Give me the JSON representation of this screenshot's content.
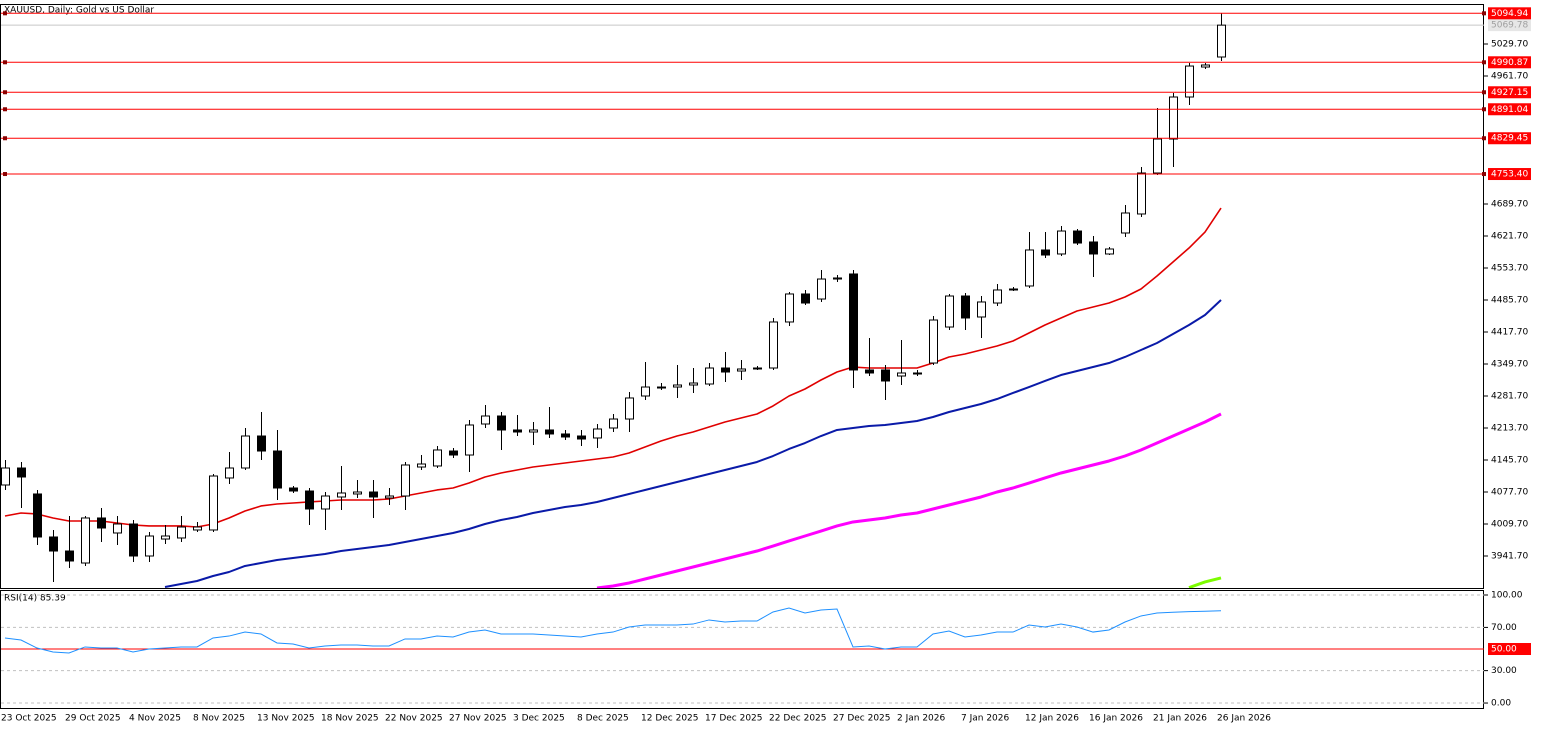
{
  "chart_data": [
    {
      "type": "candlestick",
      "title": "XAUUSD, Daily:  Gold vs US Dollar",
      "categories": [
        "23 Oct 2025",
        null,
        null,
        null,
        "29 Oct 2025",
        null,
        null,
        null,
        "4 Nov 2025",
        null,
        null,
        null,
        "8 Nov 2025",
        null,
        null,
        null,
        "13 Nov 2025",
        null,
        null,
        null,
        "18 Nov 2025",
        null,
        null,
        null,
        "22 Nov 2025",
        null,
        null,
        null,
        "27 Nov 2025",
        null,
        null,
        null,
        "3 Dec 2025",
        null,
        null,
        null,
        "8 Dec 2025",
        null,
        null,
        null,
        "12 Dec 2025",
        null,
        null,
        null,
        "17 Dec 2025",
        null,
        null,
        null,
        "22 Dec 2025",
        null,
        null,
        null,
        "27 Dec 2025",
        null,
        null,
        null,
        "2 Jan 2026",
        null,
        null,
        null,
        "7 Jan 2026",
        null,
        null,
        null,
        "12 Jan 2026",
        null,
        null,
        null,
        "16 Jan 2026",
        null,
        null,
        null,
        "21 Jan 2026",
        null,
        null,
        null,
        "26 Jan 2026"
      ],
      "open": [
        4092.6,
        4128.7,
        4073.5,
        3982.1,
        3952.3,
        3926.8,
        4022.5,
        3990.6,
        4009.7,
        3941.7,
        3977.8,
        3980.0,
        3997.0,
        3997.0,
        4107.5,
        4128.7,
        4196.7,
        4164.8,
        4086.2,
        4079.8,
        4041.6,
        4067.1,
        4073.5,
        4077.7,
        4065.0,
        4069.2,
        4130.8,
        4133.0,
        4164.8,
        4156.3,
        4222.2,
        4239.2,
        4209.5,
        4205.2,
        4209.5,
        4201.0,
        4196.7,
        4192.5,
        4213.7,
        4232.8,
        4281.7,
        4298.7,
        4300.8,
        4305.1,
        4307.2,
        4341.2,
        4334.8,
        4339.1,
        4341.2,
        4439.0,
        4498.5,
        4487.8,
        4530.3,
        4541.0,
        4337.0,
        4337.0,
        4324.2,
        4328.5,
        4351.8,
        4428.3,
        4494.2,
        4449.6,
        4479.3,
        4507.0,
        4515.5,
        4592.0,
        4583.5,
        4632.3,
        4609.0,
        4583.5,
        4628.1,
        4668.5,
        4755.6,
        4827.8,
        4917.1,
        4980.8,
        5002.1
      ],
      "high": [
        4145.7,
        4141.5,
        4082.0,
        3997.0,
        4026.7,
        4026.7,
        4043.7,
        4026.7,
        4018.2,
        3992.7,
        4007.6,
        4026.7,
        4014.0,
        4116.0,
        4162.7,
        4213.7,
        4247.7,
        4209.5,
        4090.5,
        4086.2,
        4077.7,
        4133.0,
        4103.2,
        4103.2,
        4086.2,
        4141.5,
        4156.3,
        4175.5,
        4171.2,
        4230.7,
        4262.6,
        4247.7,
        4241.3,
        4226.5,
        4258.3,
        4209.5,
        4209.5,
        4222.2,
        4243.5,
        4290.2,
        4354.0,
        4309.3,
        4347.6,
        4341.2,
        4351.8,
        4375.2,
        4358.2,
        4345.5,
        4447.5,
        4502.7,
        4507.0,
        4549.5,
        4538.8,
        4549.5,
        4405.0,
        4347.6,
        4400.7,
        4337.0,
        4451.7,
        4498.5,
        4500.6,
        4494.2,
        4519.7,
        4513.3,
        4630.2,
        4630.2,
        4643.0,
        4636.6,
        4621.7,
        4598.3,
        4687.6,
        4768.3,
        4893.7,
        4925.6,
        4989.3,
        4989.3,
        5094.9
      ],
      "low": [
        4081.9,
        4043.7,
        3965.1,
        3886.5,
        3916.2,
        3920.5,
        3971.5,
        3965.1,
        3928.9,
        3928.9,
        3967.2,
        3971.5,
        3992.7,
        3992.7,
        4094.7,
        4124.5,
        4145.7,
        4060.7,
        4075.6,
        4007.6,
        3997.0,
        4039.5,
        4065.0,
        4022.5,
        4050.1,
        4039.5,
        4124.5,
        4128.7,
        4150.0,
        4120.2,
        4213.7,
        4167.0,
        4196.7,
        4177.6,
        4192.5,
        4188.2,
        4175.5,
        4171.2,
        4205.2,
        4205.2,
        4273.2,
        4294.5,
        4277.5,
        4288.1,
        4303.0,
        4311.5,
        4315.7,
        4337.0,
        4337.0,
        4430.5,
        4475.1,
        4481.5,
        4524.0,
        4298.7,
        4324.2,
        4273.2,
        4305.1,
        4324.2,
        4347.6,
        4421.9,
        4421.9,
        4405.0,
        4473.0,
        4504.8,
        4511.2,
        4575.0,
        4579.2,
        4602.6,
        4534.6,
        4581.3,
        4619.6,
        4662.1,
        4751.3,
        4768.3,
        4900.1,
        4976.6,
        4993.6
      ],
      "close": [
        4128.7,
        4109.6,
        3982.1,
        3952.3,
        3931.1,
        4022.5,
        4001.2,
        4009.7,
        3941.7,
        3984.2,
        3984.2,
        4003.3,
        4003.3,
        4111.7,
        4128.7,
        4196.7,
        4164.8,
        4086.2,
        4079.8,
        4041.6,
        4069.2,
        4075.6,
        4077.7,
        4067.1,
        4069.2,
        4135.1,
        4137.2,
        4167.0,
        4156.3,
        4220.1,
        4239.2,
        4209.5,
        4205.2,
        4209.5,
        4201.0,
        4194.6,
        4190.3,
        4211.6,
        4232.8,
        4277.5,
        4300.8,
        4300.8,
        4305.1,
        4309.3,
        4341.2,
        4332.7,
        4339.1,
        4341.2,
        4439.0,
        4498.5,
        4479.3,
        4530.3,
        4532.5,
        4337.0,
        4330.6,
        4313.6,
        4330.6,
        4330.6,
        4443.2,
        4494.2,
        4447.5,
        4481.5,
        4507.0,
        4509.1,
        4592.0,
        4581.3,
        4632.3,
        4606.8,
        4583.5,
        4594.1,
        4670.6,
        4755.6,
        4827.8,
        4917.1,
        4982.9,
        4985.1,
        5069.8
      ],
      "up_color": "#ffffff",
      "down_color": "#000000",
      "outline_color": "#000000",
      "ylim": [
        3873.7,
        5112.6
      ],
      "yticks": [
        {
          "value": 5029.7,
          "label": "5029.70"
        },
        {
          "value": 4961.7,
          "label": "4961.70"
        },
        {
          "value": 4689.7,
          "label": "4689.70"
        },
        {
          "value": 4621.7,
          "label": "4621.70"
        },
        {
          "value": 4553.7,
          "label": "4553.70"
        },
        {
          "value": 4485.7,
          "label": "4485.70"
        },
        {
          "value": 4417.7,
          "label": "4417.70"
        },
        {
          "value": 4349.7,
          "label": "4349.70"
        },
        {
          "value": 4281.7,
          "label": "4281.70"
        },
        {
          "value": 4213.7,
          "label": "4213.70"
        },
        {
          "value": 4145.7,
          "label": "4145.70"
        },
        {
          "value": 4077.7,
          "label": "4077.70"
        },
        {
          "value": 4009.7,
          "label": "4009.70"
        },
        {
          "value": 3941.7,
          "label": "3941.70"
        }
      ],
      "levels": [
        {
          "value": 5094.94,
          "label": "5094.94"
        },
        {
          "value": 4990.87,
          "label": "4990.87"
        },
        {
          "value": 4927.15,
          "label": "4927.15"
        },
        {
          "value": 4891.04,
          "label": "4891.04"
        },
        {
          "value": 4829.45,
          "label": "4829.45"
        },
        {
          "value": 4753.4,
          "label": "4753.40"
        }
      ],
      "level_color": "#ff0000",
      "last_price": {
        "value": 5069.78,
        "label": "5069.78"
      },
      "overlays": [
        {
          "color": "#e00000",
          "width": 1.6,
          "values": [
            4026.7,
            4033.1,
            4031.0,
            4022.5,
            4016.1,
            4016.1,
            4016.1,
            4011.8,
            4007.6,
            4005.5,
            4005.5,
            4005.5,
            4003.3,
            4009.7,
            4022.5,
            4037.3,
            4048.0,
            4052.2,
            4054.3,
            4056.5,
            4058.6,
            4060.7,
            4060.7,
            4060.7,
            4062.8,
            4069.2,
            4075.6,
            4082.0,
            4086.2,
            4096.8,
            4109.6,
            4118.1,
            4124.5,
            4130.8,
            4135.1,
            4139.3,
            4143.6,
            4147.8,
            4152.1,
            4160.6,
            4173.3,
            4186.1,
            4196.7,
            4205.2,
            4215.8,
            4226.5,
            4235.0,
            4243.5,
            4260.5,
            4281.7,
            4296.6,
            4315.7,
            4332.7,
            4343.3,
            4341.2,
            4341.2,
            4341.2,
            4341.2,
            4351.8,
            4364.6,
            4371.0,
            4379.5,
            4388.0,
            4398.6,
            4415.6,
            4432.6,
            4447.5,
            4462.3,
            4470.8,
            4479.3,
            4492.1,
            4509.1,
            4536.7,
            4566.5,
            4596.2,
            4630.2,
            4681.2
          ]
        },
        {
          "color": "#0a1aa8",
          "width": 2,
          "values": [
            null,
            null,
            null,
            null,
            null,
            null,
            null,
            null,
            null,
            null,
            3875.8,
            3882.2,
            3888.6,
            3899.2,
            3907.7,
            3920.5,
            3926.8,
            3933.2,
            3937.5,
            3941.7,
            3946.0,
            3952.3,
            3956.6,
            3960.8,
            3965.1,
            3971.5,
            3977.8,
            3984.2,
            3990.6,
            3999.1,
            4009.7,
            4018.2,
            4024.6,
            4033.1,
            4039.5,
            4045.8,
            4050.1,
            4056.5,
            4065.0,
            4073.5,
            4082.0,
            4090.5,
            4099.0,
            4107.5,
            4116.0,
            4124.5,
            4133.0,
            4141.5,
            4154.2,
            4169.1,
            4181.8,
            4196.7,
            4209.5,
            4213.7,
            4218.0,
            4220.1,
            4224.3,
            4228.6,
            4237.1,
            4247.7,
            4256.2,
            4264.7,
            4275.3,
            4288.1,
            4300.8,
            4313.6,
            4326.3,
            4334.8,
            4343.3,
            4351.8,
            4364.6,
            4379.5,
            4394.3,
            4413.5,
            4432.6,
            4453.8,
            4485.7
          ]
        },
        {
          "color": "#ff00ff",
          "width": 3,
          "values": [
            null,
            null,
            null,
            null,
            null,
            null,
            null,
            null,
            null,
            null,
            null,
            null,
            null,
            null,
            null,
            null,
            null,
            null,
            null,
            null,
            null,
            null,
            null,
            null,
            null,
            null,
            null,
            null,
            null,
            null,
            null,
            null,
            null,
            null,
            null,
            null,
            null,
            3873.7,
            3877.9,
            3884.3,
            3892.8,
            3901.3,
            3909.8,
            3918.3,
            3926.8,
            3935.3,
            3943.8,
            3952.3,
            3962.9,
            3973.6,
            3984.2,
            3994.8,
            4005.5,
            4014.0,
            4018.2,
            4022.5,
            4028.8,
            4033.1,
            4041.6,
            4050.1,
            4058.6,
            4067.1,
            4077.7,
            4086.2,
            4096.8,
            4107.5,
            4118.1,
            4126.6,
            4135.1,
            4143.6,
            4154.2,
            4167.0,
            4181.8,
            4196.7,
            4211.6,
            4226.5,
            4243.5
          ]
        },
        {
          "color": "#7cfc00",
          "width": 3,
          "values": [
            null,
            null,
            null,
            null,
            null,
            null,
            null,
            null,
            null,
            null,
            null,
            null,
            null,
            null,
            null,
            null,
            null,
            null,
            null,
            null,
            null,
            null,
            null,
            null,
            null,
            null,
            null,
            null,
            null,
            null,
            null,
            null,
            null,
            null,
            null,
            null,
            null,
            null,
            null,
            null,
            null,
            null,
            null,
            null,
            null,
            null,
            null,
            null,
            null,
            null,
            null,
            null,
            null,
            null,
            null,
            null,
            null,
            null,
            null,
            null,
            null,
            null,
            null,
            null,
            null,
            null,
            null,
            null,
            null,
            null,
            null,
            null,
            null,
            null,
            3874.5,
            3886.5,
            3895.0
          ]
        }
      ]
    },
    {
      "type": "line",
      "title": "RSI(14) 85.39",
      "values": [
        60.2,
        58.3,
        50.9,
        47.2,
        46.3,
        51.9,
        50.9,
        50.9,
        47.2,
        50.0,
        50.9,
        51.9,
        51.9,
        60.2,
        62.0,
        65.7,
        63.9,
        55.6,
        54.6,
        50.9,
        52.8,
        53.7,
        53.7,
        52.8,
        52.8,
        59.3,
        59.3,
        62.0,
        61.1,
        65.7,
        67.6,
        63.9,
        63.9,
        63.9,
        63.0,
        62.0,
        61.1,
        63.9,
        65.7,
        70.4,
        72.2,
        72.2,
        72.2,
        73.1,
        76.9,
        75.0,
        75.9,
        75.9,
        84.3,
        88.0,
        83.3,
        86.1,
        87.0,
        51.9,
        52.8,
        50.0,
        51.9,
        51.9,
        63.9,
        66.7,
        61.1,
        63.0,
        65.7,
        65.7,
        72.2,
        70.4,
        73.1,
        70.4,
        65.7,
        67.6,
        75.0,
        80.6,
        83.3,
        84.0,
        84.6,
        85.0,
        85.39
      ],
      "color": "#1e90ff",
      "ylim": [
        -4.6,
        103.7
      ],
      "yticks": [
        {
          "value": 100,
          "label": "100.00"
        },
        {
          "value": 70,
          "label": "70.00"
        },
        {
          "value": 30,
          "label": "30.00"
        },
        {
          "value": 0,
          "label": "0.00"
        }
      ],
      "grid": true,
      "levels": [
        {
          "value": 50,
          "label": "50.00"
        }
      ],
      "level_color": "#ff0000"
    }
  ]
}
